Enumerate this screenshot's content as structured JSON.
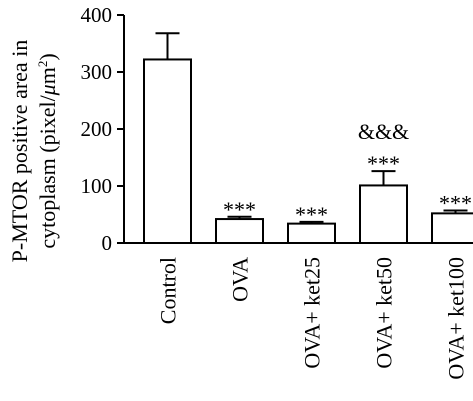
{
  "chart_data": {
    "type": "bar",
    "categories": [
      "Control",
      "OVA",
      "OVA+ ket25",
      "OVA+ ket50",
      "OVA+ ket100"
    ],
    "values": [
      322,
      42,
      34,
      101,
      52
    ],
    "errors": [
      46,
      4,
      3,
      25,
      5
    ],
    "annotations": [
      "",
      "***",
      "***",
      "&&&\n***",
      "***"
    ],
    "ylabel_line1": "P-MTOR positive area in",
    "ylabel_line2": "cytoplasm (pixel/",
    "ylabel_unit_mu": "μ",
    "ylabel_unit_m": "m",
    "ylabel_unit_sup": "2",
    "ylabel_close": ")",
    "yticks": [
      0,
      100,
      200,
      300,
      400
    ],
    "ylim": [
      0,
      400
    ],
    "bar_color": "#ffffff",
    "edge_color": "#000000"
  }
}
